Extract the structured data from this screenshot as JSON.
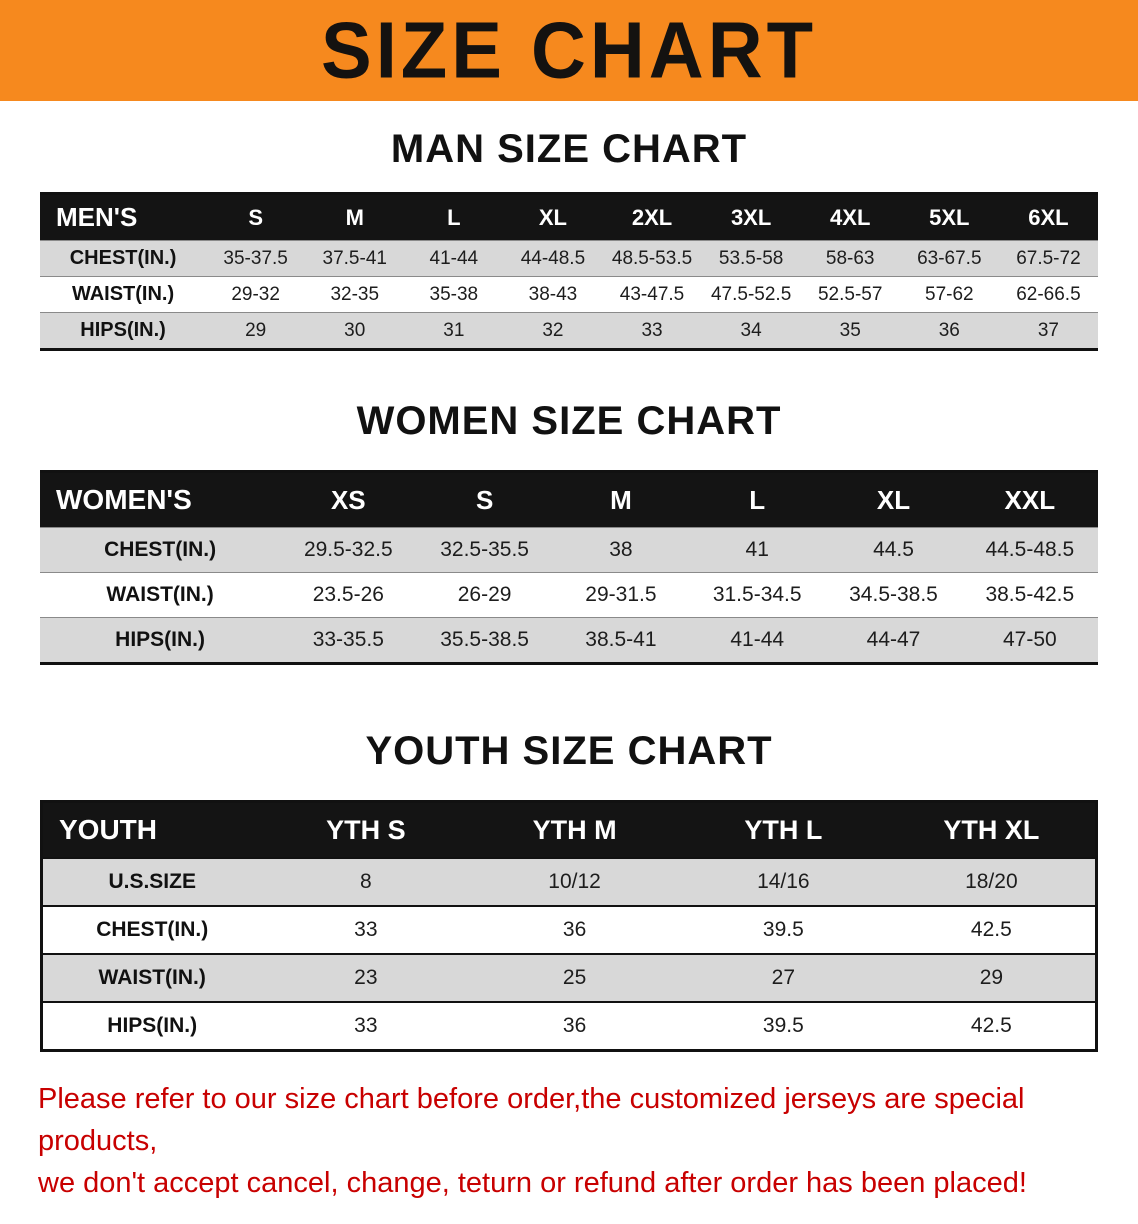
{
  "banner": {
    "title": "SIZE CHART",
    "bg_color": "#f6891e",
    "text_color": "#141210"
  },
  "sections": [
    {
      "id": "men",
      "heading": "MAN SIZE CHART",
      "table": {
        "header_label": "MEN'S",
        "columns": [
          "S",
          "M",
          "L",
          "XL",
          "2XL",
          "3XL",
          "4XL",
          "5XL",
          "6XL"
        ],
        "rows": [
          {
            "label": "CHEST(IN.)",
            "values": [
              "35-37.5",
              "37.5-41",
              "41-44",
              "44-48.5",
              "48.5-53.5",
              "53.5-58",
              "58-63",
              "63-67.5",
              "67.5-72"
            ]
          },
          {
            "label": "WAIST(IN.)",
            "values": [
              "29-32",
              "32-35",
              "35-38",
              "38-43",
              "43-47.5",
              "47.5-52.5",
              "52.5-57",
              "57-62",
              "62-66.5"
            ]
          },
          {
            "label": "HIPS(IN.)",
            "values": [
              "29",
              "30",
              "31",
              "32",
              "33",
              "34",
              "35",
              "36",
              "37"
            ]
          }
        ]
      }
    },
    {
      "id": "women",
      "heading": "WOMEN SIZE CHART",
      "table": {
        "header_label": "WOMEN'S",
        "columns": [
          "XS",
          "S",
          "M",
          "L",
          "XL",
          "XXL"
        ],
        "rows": [
          {
            "label": "CHEST(IN.)",
            "values": [
              "29.5-32.5",
              "32.5-35.5",
              "38",
              "41",
              "44.5",
              "44.5-48.5"
            ]
          },
          {
            "label": "WAIST(IN.)",
            "values": [
              "23.5-26",
              "26-29",
              "29-31.5",
              "31.5-34.5",
              "34.5-38.5",
              "38.5-42.5"
            ]
          },
          {
            "label": "HIPS(IN.)",
            "values": [
              "33-35.5",
              "35.5-38.5",
              "38.5-41",
              "41-44",
              "44-47",
              "47-50"
            ]
          }
        ]
      }
    },
    {
      "id": "youth",
      "heading": "YOUTH SIZE CHART",
      "table": {
        "header_label": "YOUTH",
        "columns": [
          "YTH S",
          "YTH M",
          "YTH L",
          "YTH XL"
        ],
        "rows": [
          {
            "label": "U.S.SIZE",
            "values": [
              "8",
              "10/12",
              "14/16",
              "18/20"
            ]
          },
          {
            "label": "CHEST(IN.)",
            "values": [
              "33",
              "36",
              "39.5",
              "42.5"
            ]
          },
          {
            "label": "WAIST(IN.)",
            "values": [
              "23",
              "25",
              "27",
              "29"
            ]
          },
          {
            "label": "HIPS(IN.)",
            "values": [
              "33",
              "36",
              "39.5",
              "42.5"
            ]
          }
        ]
      }
    }
  ],
  "footer": {
    "line1": "Please refer to our size chart before order,the customized jerseys are special products,",
    "line2": "we don't accept cancel, change, teturn or refund after order has been placed!",
    "text_color": "#c80000"
  }
}
